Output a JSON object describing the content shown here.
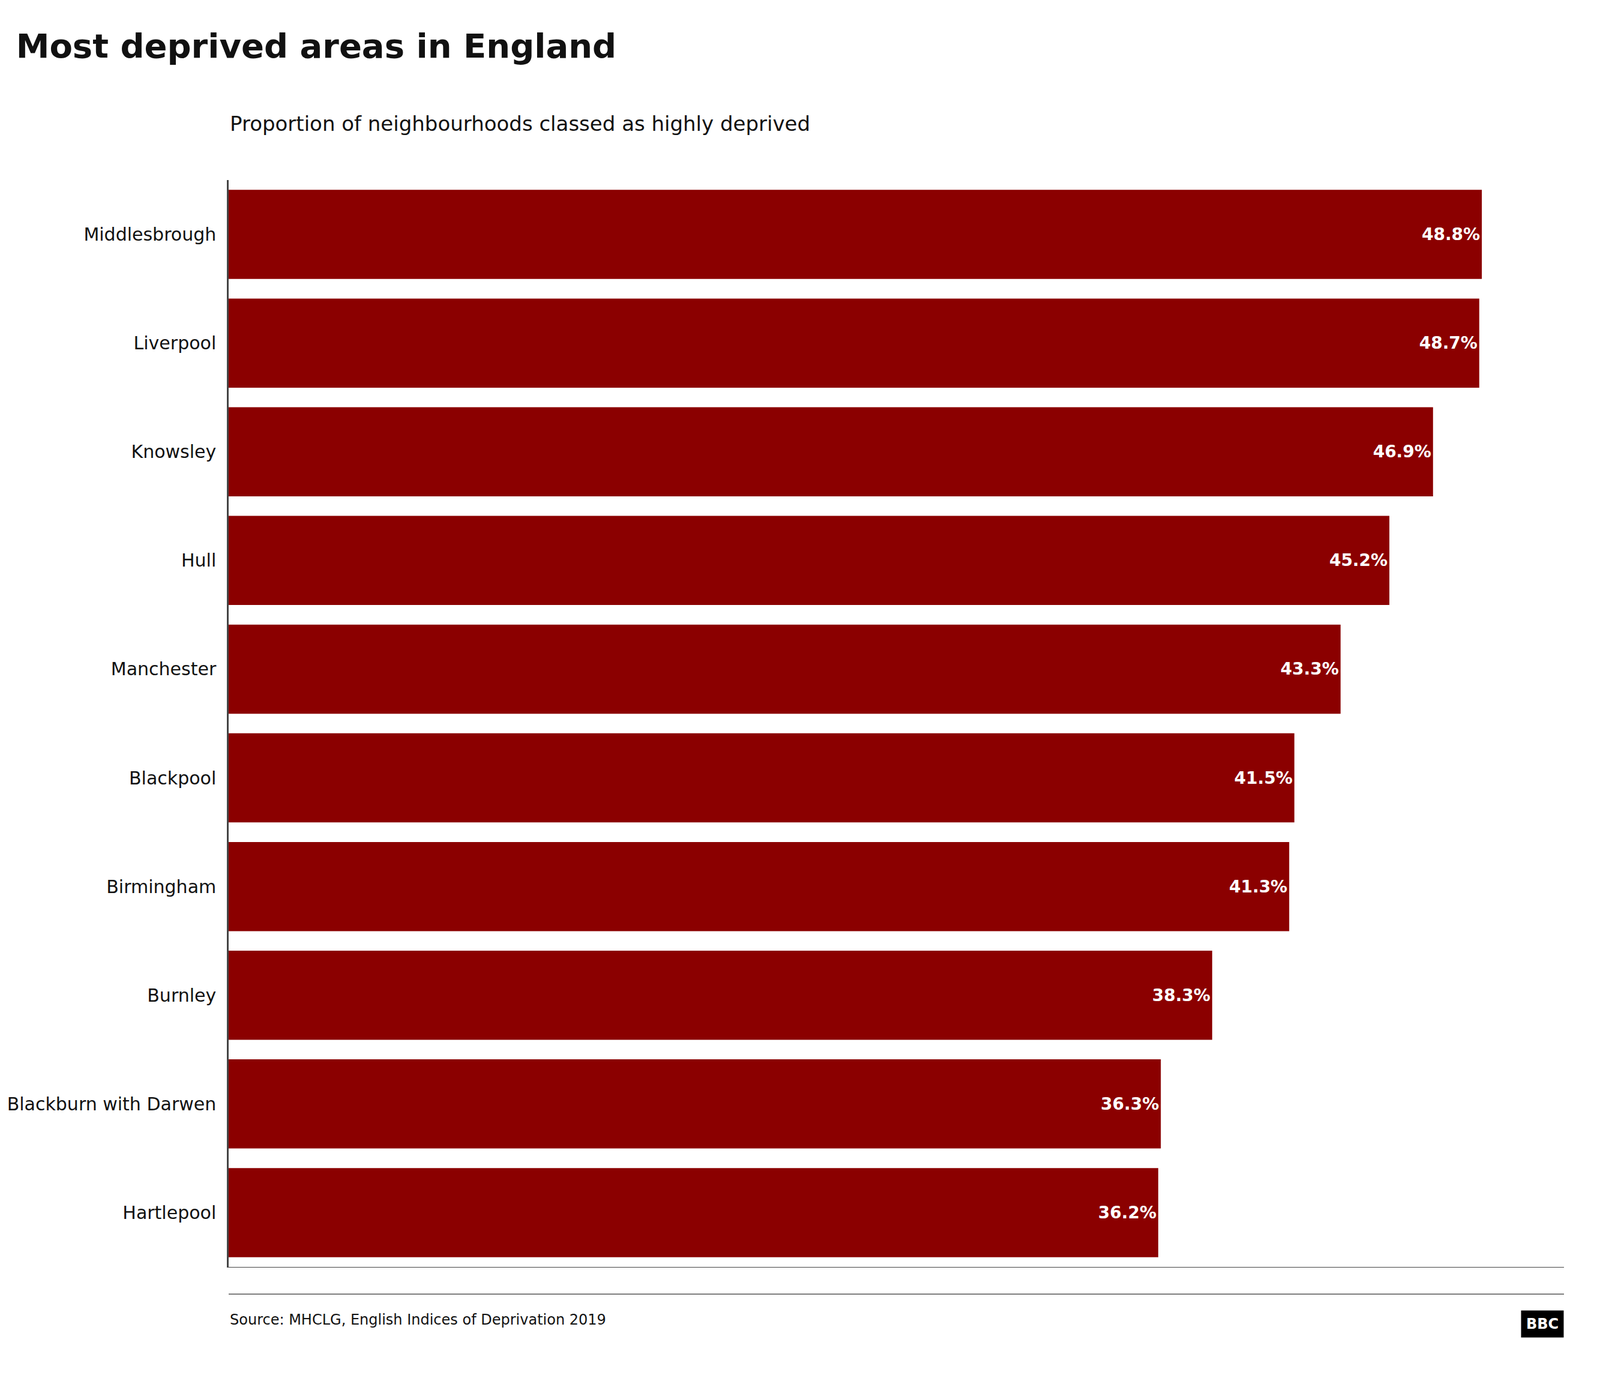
{
  "chart_data": {
    "type": "bar",
    "orientation": "horizontal",
    "title": "Most deprived areas in England",
    "subtitle": "Proportion of neighbourhoods classed as highly deprived",
    "source": "Source: MHCLG, English Indices of Deprivation 2019",
    "annotations": [
      "BBC"
    ],
    "categories": [
      "Middlesbrough",
      "Liverpool",
      "Knowsley",
      "Hull",
      "Manchester",
      "Blackpool",
      "Birmingham",
      "Burnley",
      "Blackburn with Darwen",
      "Hartlepool"
    ],
    "values": [
      48.8,
      48.7,
      46.9,
      45.2,
      43.3,
      41.5,
      41.3,
      38.3,
      36.3,
      36.2
    ],
    "value_labels": [
      "48.8%",
      "48.7%",
      "46.9%",
      "45.2%",
      "43.3%",
      "41.5%",
      "41.3%",
      "38.3%",
      "36.3%",
      "36.2%"
    ],
    "data_labels": true,
    "color": "#8B0000",
    "xlim": [
      0,
      52
    ],
    "tick_labels": "y",
    "grid": false
  }
}
